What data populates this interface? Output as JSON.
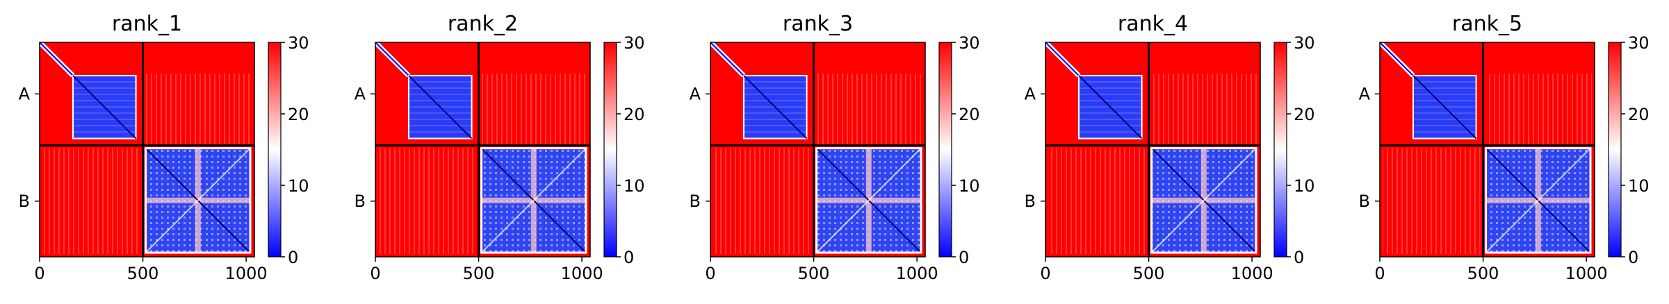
{
  "chart_data": [
    {
      "type": "heatmap",
      "title": "rank_1",
      "y_tick_labels": [
        "A",
        "B"
      ],
      "x_ticks": [
        0,
        500,
        1000
      ],
      "chain_boundary": 500,
      "total_length": 1040,
      "colorbar": {
        "min": 0,
        "max": 30,
        "ticks": [
          0,
          10,
          20,
          30
        ],
        "colors": [
          "#0000ff",
          "#ffffff",
          "#ff0000"
        ]
      }
    },
    {
      "type": "heatmap",
      "title": "rank_2",
      "y_tick_labels": [
        "A",
        "B"
      ],
      "x_ticks": [
        0,
        500,
        1000
      ],
      "chain_boundary": 500,
      "total_length": 1040,
      "colorbar": {
        "min": 0,
        "max": 30,
        "ticks": [
          0,
          10,
          20,
          30
        ],
        "colors": [
          "#0000ff",
          "#ffffff",
          "#ff0000"
        ]
      }
    },
    {
      "type": "heatmap",
      "title": "rank_3",
      "y_tick_labels": [
        "A",
        "B"
      ],
      "x_ticks": [
        0,
        500,
        1000
      ],
      "chain_boundary": 500,
      "total_length": 1040,
      "colorbar": {
        "min": 0,
        "max": 30,
        "ticks": [
          0,
          10,
          20,
          30
        ],
        "colors": [
          "#0000ff",
          "#ffffff",
          "#ff0000"
        ]
      }
    },
    {
      "type": "heatmap",
      "title": "rank_4",
      "y_tick_labels": [
        "A",
        "B"
      ],
      "x_ticks": [
        0,
        500,
        1000
      ],
      "chain_boundary": 500,
      "total_length": 1040,
      "colorbar": {
        "min": 0,
        "max": 30,
        "ticks": [
          0,
          10,
          20,
          30
        ],
        "colors": [
          "#0000ff",
          "#ffffff",
          "#ff0000"
        ]
      }
    },
    {
      "type": "heatmap",
      "title": "rank_5",
      "y_tick_labels": [
        "A",
        "B"
      ],
      "x_ticks": [
        0,
        500,
        1000
      ],
      "chain_boundary": 500,
      "total_length": 1040,
      "colorbar": {
        "min": 0,
        "max": 30,
        "ticks": [
          0,
          10,
          20,
          30
        ],
        "colors": [
          "#0000ff",
          "#ffffff",
          "#ff0000"
        ]
      }
    }
  ]
}
